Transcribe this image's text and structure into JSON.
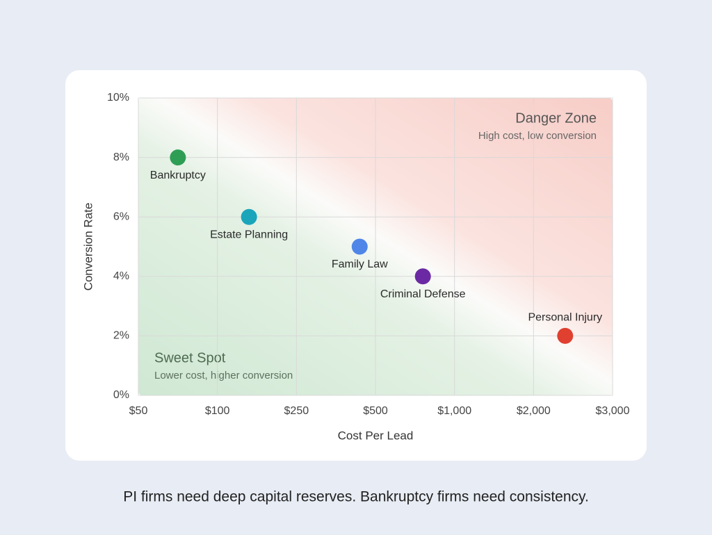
{
  "chart_data": {
    "type": "scatter",
    "x_label": "Cost Per Lead",
    "y_label": "Conversion Rate",
    "xlim": [
      50,
      3000
    ],
    "ylim": [
      0,
      10
    ],
    "xticks": [
      {
        "value": 50,
        "label": "$50"
      },
      {
        "value": 100,
        "label": "$100"
      },
      {
        "value": 250,
        "label": "$250"
      },
      {
        "value": 500,
        "label": "$500"
      },
      {
        "value": 1000,
        "label": "$1,000"
      },
      {
        "value": 2000,
        "label": "$2,000"
      },
      {
        "value": 3000,
        "label": "$3,000"
      }
    ],
    "yticks": [
      {
        "value": 0,
        "label": "0%"
      },
      {
        "value": 2,
        "label": "2%"
      },
      {
        "value": 4,
        "label": "4%"
      },
      {
        "value": 6,
        "label": "6%"
      },
      {
        "value": 8,
        "label": "8%"
      },
      {
        "value": 10,
        "label": "10%"
      }
    ],
    "grid": true,
    "series": [
      {
        "name": "Bankruptcy",
        "color": "#2e9e55",
        "x": [
          75
        ],
        "values": [
          8
        ]
      },
      {
        "name": "Estate Planning",
        "color": "#1aa5bb",
        "x": [
          160
        ],
        "values": [
          6
        ]
      },
      {
        "name": "Family Law",
        "color": "#4f86e8",
        "x": [
          450
        ],
        "values": [
          5
        ]
      },
      {
        "name": "Criminal Defense",
        "color": "#6b2aa3",
        "x": [
          800
        ],
        "values": [
          4
        ]
      },
      {
        "name": "Personal Injury",
        "color": "#e0402f",
        "x": [
          2400
        ],
        "values": [
          2
        ]
      }
    ],
    "annotations": [
      {
        "title": "Danger Zone",
        "text": "High cost, low conversion"
      },
      {
        "title": "Sweet Spot",
        "text": "Lower cost, higher conversion"
      }
    ],
    "caption": "PI firms need deep capital reserves. Bankruptcy firms need consistency."
  }
}
